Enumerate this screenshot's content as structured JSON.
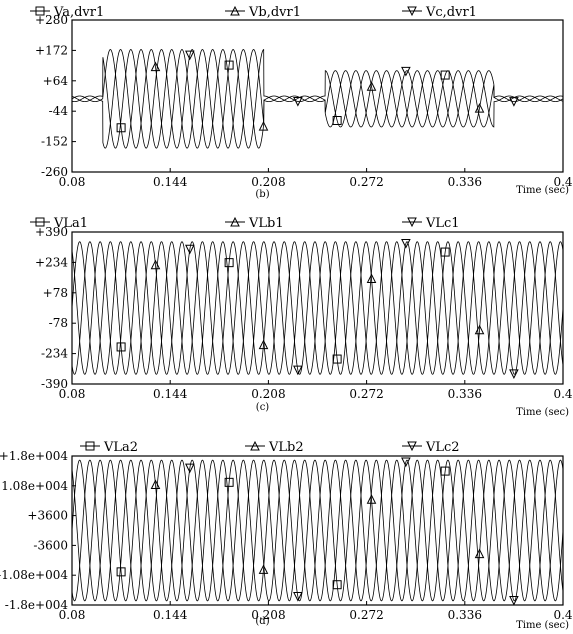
{
  "figure": {
    "panels": [
      {
        "panel_label": "(b)",
        "xaxis_label": "Time (sec)",
        "legend": [
          "Va,dvr1",
          "Vb,dvr1",
          "Vc,dvr1"
        ]
      },
      {
        "panel_label": "(c)",
        "xaxis_label": "Time (sec)",
        "legend": [
          "VLa1",
          "VLb1",
          "VLc1"
        ]
      },
      {
        "panel_label": "(d)",
        "xaxis_label": "Time (sec)",
        "legend": [
          "VLa2",
          "VLb2",
          "VLc2"
        ]
      }
    ]
  },
  "chart_data": [
    {
      "type": "line",
      "title": "",
      "panel_label": "(b)",
      "xlabel": "Time (sec)",
      "ylabel": "",
      "xlim": [
        0.08,
        0.4
      ],
      "ylim": [
        -260,
        280
      ],
      "x_ticks": [
        "0.08",
        "0.144",
        "0.208",
        "0.272",
        "0.336",
        "0.4"
      ],
      "y_ticks": [
        "+280",
        "+172",
        "+64",
        "-44",
        "-152",
        "-260"
      ],
      "grid": false,
      "legend_position": "top",
      "series": [
        {
          "name": "Va,dvr1",
          "marker": "square",
          "phase_deg": 0
        },
        {
          "name": "Vb,dvr1",
          "marker": "triangle-up",
          "phase_deg": -120
        },
        {
          "name": "Vc,dvr1",
          "marker": "triangle-down",
          "phase_deg": 120
        }
      ],
      "frequency_hz": 50,
      "envelope": [
        {
          "t_start": 0.08,
          "t_end": 0.1,
          "amplitude": 10
        },
        {
          "t_start": 0.1,
          "t_end": 0.205,
          "amplitude": 175
        },
        {
          "t_start": 0.205,
          "t_end": 0.245,
          "amplitude": 10
        },
        {
          "t_start": 0.245,
          "t_end": 0.355,
          "amplitude": 100
        },
        {
          "t_start": 0.355,
          "t_end": 0.4,
          "amplitude": 10
        }
      ]
    },
    {
      "type": "line",
      "title": "",
      "panel_label": "(c)",
      "xlabel": "Time (sec)",
      "ylabel": "",
      "xlim": [
        0.08,
        0.4
      ],
      "ylim": [
        -390,
        390
      ],
      "x_ticks": [
        "0.08",
        "0.144",
        "0.208",
        "0.272",
        "0.336",
        "0.4"
      ],
      "y_ticks": [
        "+390",
        "+234",
        "+78",
        "-78",
        "-234",
        "-390"
      ],
      "grid": false,
      "legend_position": "top",
      "series": [
        {
          "name": "VLa1",
          "marker": "square",
          "phase_deg": 0
        },
        {
          "name": "VLb1",
          "marker": "triangle-up",
          "phase_deg": -120
        },
        {
          "name": "VLc1",
          "marker": "triangle-down",
          "phase_deg": 120
        }
      ],
      "frequency_hz": 50,
      "envelope": [
        {
          "t_start": 0.08,
          "t_end": 0.4,
          "amplitude": 340
        }
      ]
    },
    {
      "type": "line",
      "title": "",
      "panel_label": "(d)",
      "xlabel": "Time (sec)",
      "ylabel": "",
      "xlim": [
        0.08,
        0.4
      ],
      "ylim": [
        -18000,
        18000
      ],
      "x_ticks": [
        "0.08",
        "0.144",
        "0.208",
        "0.272",
        "0.336",
        "0.4"
      ],
      "y_ticks": [
        "+1.8e+004",
        "+1.08e+004",
        "+3600",
        "-3600",
        "-1.08e+004",
        "-1.8e+004"
      ],
      "grid": false,
      "legend_position": "top",
      "series": [
        {
          "name": "VLa2",
          "marker": "square",
          "phase_deg": 0
        },
        {
          "name": "VLb2",
          "marker": "triangle-up",
          "phase_deg": -120
        },
        {
          "name": "VLc2",
          "marker": "triangle-down",
          "phase_deg": 120
        }
      ],
      "frequency_hz": 50,
      "envelope": [
        {
          "t_start": 0.08,
          "t_end": 0.4,
          "amplitude": 17000
        }
      ]
    }
  ]
}
